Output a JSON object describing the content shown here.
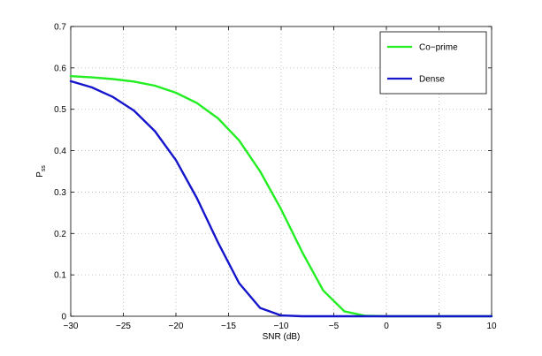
{
  "chart_data": {
    "type": "line",
    "title": "",
    "xlabel": "SNR (dB)",
    "ylabel_main": "P",
    "ylabel_sub": "ss",
    "xlim": [
      -30,
      10
    ],
    "ylim": [
      0,
      0.7
    ],
    "xticks": [
      -30,
      -25,
      -20,
      -15,
      -10,
      -5,
      0,
      5,
      10
    ],
    "yticks": [
      0,
      0.1,
      0.2,
      0.3,
      0.4,
      0.5,
      0.6,
      0.7
    ],
    "grid": true,
    "legend_position": "top-right",
    "series": [
      {
        "name": "Co−prime",
        "color": "#22ee22",
        "x": [
          -30,
          -28,
          -26,
          -24,
          -22,
          -20,
          -18,
          -16,
          -14,
          -12,
          -10,
          -8,
          -6,
          -4,
          -2,
          0,
          2,
          4,
          6,
          8,
          10
        ],
        "y": [
          0.58,
          0.577,
          0.573,
          0.567,
          0.557,
          0.54,
          0.515,
          0.478,
          0.425,
          0.35,
          0.258,
          0.155,
          0.062,
          0.012,
          0.001,
          0,
          0,
          0,
          0,
          0,
          0
        ]
      },
      {
        "name": "Dense",
        "color": "#1515cc",
        "x": [
          -30,
          -28,
          -26,
          -24,
          -22,
          -20,
          -18,
          -16,
          -14,
          -12,
          -10,
          -8,
          -6,
          -4,
          -2,
          0,
          2,
          4,
          6,
          8,
          10
        ],
        "y": [
          0.568,
          0.553,
          0.53,
          0.497,
          0.447,
          0.377,
          0.285,
          0.178,
          0.08,
          0.02,
          0.002,
          0,
          0,
          0,
          0,
          0,
          0,
          0,
          0,
          0,
          0
        ]
      }
    ]
  }
}
